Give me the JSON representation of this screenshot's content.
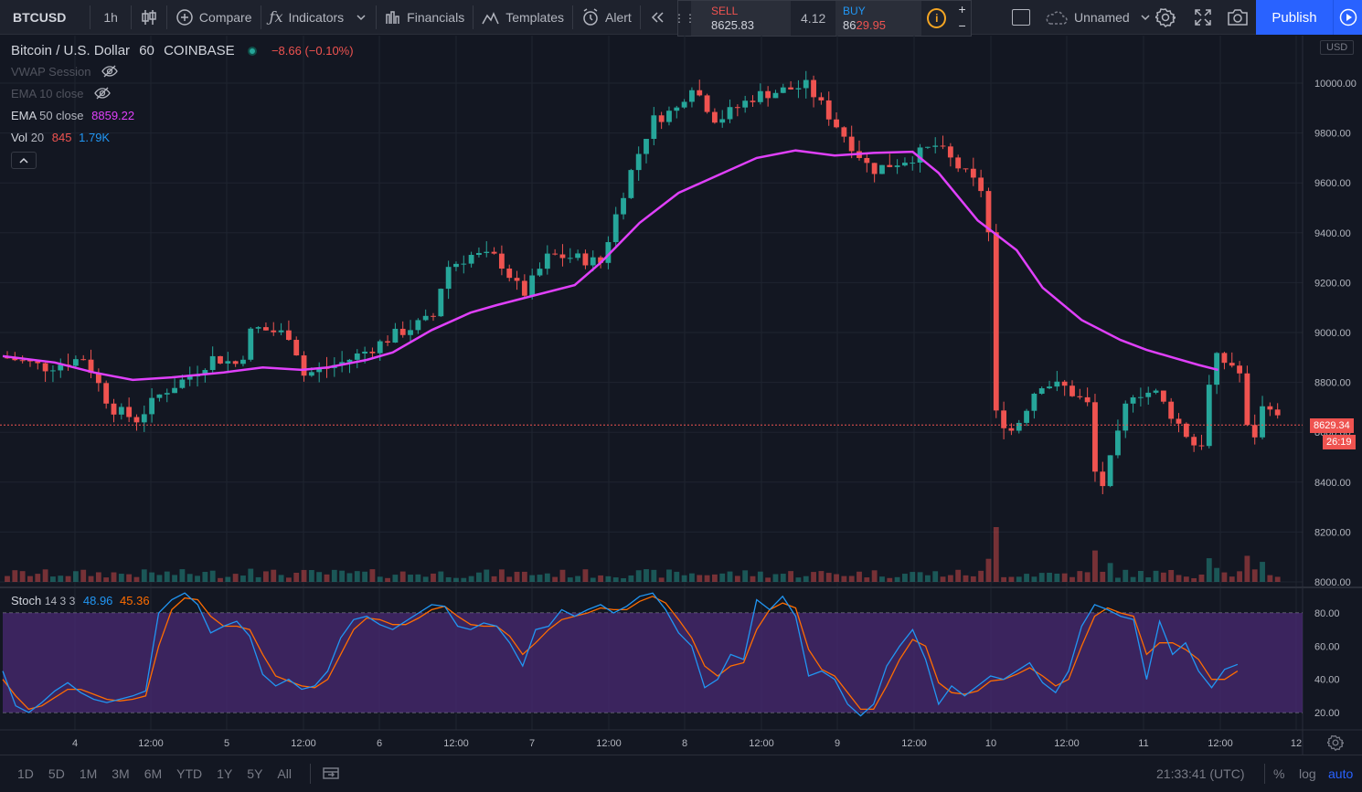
{
  "toolbar": {
    "symbol": "BTCUSD",
    "interval": "1h",
    "compare": "Compare",
    "indicators": "Indicators",
    "financials": "Financials",
    "templates": "Templates",
    "alert": "Alert",
    "layout_name": "Unnamed",
    "publish": "Publish"
  },
  "trade": {
    "sell_label": "SELL",
    "sell_price": "8625.83",
    "spread": "4.12",
    "buy_label": "BUY",
    "buy_price_prefix": "86",
    "buy_price_suffix": "29.95",
    "info": "i",
    "plus": "+",
    "minus": "−"
  },
  "legend": {
    "title": "Bitcoin / U.S. Dollar",
    "interval": "60",
    "exchange": "COINBASE",
    "change": "−8.66 (−0.10%)",
    "vwap": "VWAP Session",
    "ema10": "EMA 10 close",
    "ema50_name": "EMA",
    "ema50_params": "50 close",
    "ema50_value": "8859.22",
    "vol_name": "Vol",
    "vol_param": "20",
    "vol_value": "845",
    "vol_ma": "1.79K",
    "stoch_name": "Stoch",
    "stoch_params": "14 3 3",
    "stoch_k": "48.96",
    "stoch_d": "45.36"
  },
  "price_axis": {
    "currency": "USD",
    "labels": [
      "10000.00",
      "9800.00",
      "9600.00",
      "9400.00",
      "9200.00",
      "9000.00",
      "8800.00",
      "8600.00",
      "8400.00",
      "8200.00",
      "8000.00"
    ],
    "last_price": "8629.34",
    "countdown": "26:19"
  },
  "stoch_axis": {
    "labels": [
      "80.00",
      "60.00",
      "40.00",
      "20.00"
    ]
  },
  "time_axis": {
    "labels": [
      "4",
      "12:00",
      "5",
      "12:00",
      "6",
      "12:00",
      "7",
      "12:00",
      "8",
      "12:00",
      "9",
      "12:00",
      "10",
      "12:00",
      "11",
      "12:00",
      "12"
    ]
  },
  "bottom": {
    "ranges": [
      "1D",
      "5D",
      "1M",
      "3M",
      "6M",
      "YTD",
      "1Y",
      "5Y",
      "All"
    ],
    "clock": "21:33:41 (UTC)",
    "percent": "%",
    "log": "log",
    "auto": "auto"
  },
  "colors": {
    "up": "#26a69a",
    "down": "#ef5350",
    "ema50": "#e040fb",
    "stoch_k": "#2196f3",
    "stoch_d": "#ff6d00",
    "stoch_band": "#4a2a73"
  },
  "chart_data": {
    "type": "candlestick",
    "ema50": [
      [
        0,
        8905
      ],
      [
        0.04,
        8880
      ],
      [
        0.07,
        8840
      ],
      [
        0.1,
        8810
      ],
      [
        0.13,
        8820
      ],
      [
        0.17,
        8840
      ],
      [
        0.2,
        8860
      ],
      [
        0.23,
        8850
      ],
      [
        0.25,
        8860
      ],
      [
        0.28,
        8890
      ],
      [
        0.3,
        8920
      ],
      [
        0.33,
        9010
      ],
      [
        0.36,
        9080
      ],
      [
        0.38,
        9110
      ],
      [
        0.41,
        9150
      ],
      [
        0.44,
        9190
      ],
      [
        0.46,
        9280
      ],
      [
        0.49,
        9440
      ],
      [
        0.52,
        9560
      ],
      [
        0.55,
        9630
      ],
      [
        0.58,
        9700
      ],
      [
        0.61,
        9730
      ],
      [
        0.64,
        9710
      ],
      [
        0.67,
        9720
      ],
      [
        0.7,
        9725
      ],
      [
        0.72,
        9640
      ],
      [
        0.75,
        9450
      ],
      [
        0.78,
        9330
      ],
      [
        0.8,
        9180
      ],
      [
        0.83,
        9050
      ],
      [
        0.86,
        8970
      ],
      [
        0.88,
        8930
      ],
      [
        0.9,
        8900
      ],
      [
        0.92,
        8870
      ],
      [
        0.935,
        8850
      ]
    ],
    "stoch_k": [
      [
        0,
        45
      ],
      [
        0.01,
        24
      ],
      [
        0.02,
        20
      ],
      [
        0.03,
        26
      ],
      [
        0.04,
        33
      ],
      [
        0.05,
        38
      ],
      [
        0.06,
        32
      ],
      [
        0.07,
        28
      ],
      [
        0.08,
        26
      ],
      [
        0.09,
        28
      ],
      [
        0.1,
        30
      ],
      [
        0.11,
        33
      ],
      [
        0.12,
        80
      ],
      [
        0.13,
        88
      ],
      [
        0.14,
        92
      ],
      [
        0.15,
        85
      ],
      [
        0.16,
        68
      ],
      [
        0.17,
        72
      ],
      [
        0.18,
        75
      ],
      [
        0.19,
        66
      ],
      [
        0.2,
        43
      ],
      [
        0.21,
        36
      ],
      [
        0.22,
        40
      ],
      [
        0.23,
        34
      ],
      [
        0.24,
        36
      ],
      [
        0.25,
        45
      ],
      [
        0.26,
        65
      ],
      [
        0.27,
        76
      ],
      [
        0.28,
        78
      ],
      [
        0.29,
        73
      ],
      [
        0.3,
        70
      ],
      [
        0.31,
        75
      ],
      [
        0.32,
        80
      ],
      [
        0.33,
        85
      ],
      [
        0.34,
        84
      ],
      [
        0.35,
        72
      ],
      [
        0.36,
        70
      ],
      [
        0.37,
        74
      ],
      [
        0.38,
        72
      ],
      [
        0.39,
        62
      ],
      [
        0.4,
        48
      ],
      [
        0.41,
        70
      ],
      [
        0.42,
        72
      ],
      [
        0.43,
        82
      ],
      [
        0.44,
        78
      ],
      [
        0.45,
        82
      ],
      [
        0.46,
        85
      ],
      [
        0.47,
        80
      ],
      [
        0.48,
        84
      ],
      [
        0.49,
        90
      ],
      [
        0.5,
        92
      ],
      [
        0.51,
        82
      ],
      [
        0.52,
        68
      ],
      [
        0.53,
        60
      ],
      [
        0.54,
        35
      ],
      [
        0.55,
        40
      ],
      [
        0.56,
        55
      ],
      [
        0.57,
        52
      ],
      [
        0.58,
        88
      ],
      [
        0.59,
        82
      ],
      [
        0.6,
        90
      ],
      [
        0.61,
        78
      ],
      [
        0.62,
        42
      ],
      [
        0.63,
        45
      ],
      [
        0.64,
        40
      ],
      [
        0.65,
        25
      ],
      [
        0.66,
        18
      ],
      [
        0.67,
        25
      ],
      [
        0.68,
        48
      ],
      [
        0.69,
        60
      ],
      [
        0.7,
        70
      ],
      [
        0.71,
        52
      ],
      [
        0.72,
        25
      ],
      [
        0.73,
        36
      ],
      [
        0.74,
        30
      ],
      [
        0.75,
        36
      ],
      [
        0.76,
        42
      ],
      [
        0.77,
        40
      ],
      [
        0.78,
        45
      ],
      [
        0.79,
        50
      ],
      [
        0.8,
        38
      ],
      [
        0.81,
        32
      ],
      [
        0.82,
        45
      ],
      [
        0.83,
        72
      ],
      [
        0.84,
        85
      ],
      [
        0.85,
        82
      ],
      [
        0.86,
        78
      ],
      [
        0.87,
        76
      ],
      [
        0.88,
        40
      ],
      [
        0.89,
        75
      ],
      [
        0.9,
        55
      ],
      [
        0.91,
        62
      ],
      [
        0.92,
        45
      ],
      [
        0.93,
        35
      ],
      [
        0.94,
        46
      ],
      [
        0.95,
        49
      ]
    ],
    "stoch_d": [
      [
        0,
        40
      ],
      [
        0.01,
        30
      ],
      [
        0.02,
        22
      ],
      [
        0.03,
        24
      ],
      [
        0.04,
        29
      ],
      [
        0.05,
        34
      ],
      [
        0.06,
        34
      ],
      [
        0.07,
        31
      ],
      [
        0.08,
        28
      ],
      [
        0.09,
        27
      ],
      [
        0.1,
        28
      ],
      [
        0.11,
        30
      ],
      [
        0.12,
        60
      ],
      [
        0.13,
        82
      ],
      [
        0.14,
        89
      ],
      [
        0.15,
        88
      ],
      [
        0.16,
        78
      ],
      [
        0.17,
        72
      ],
      [
        0.18,
        72
      ],
      [
        0.19,
        70
      ],
      [
        0.2,
        55
      ],
      [
        0.21,
        42
      ],
      [
        0.22,
        39
      ],
      [
        0.23,
        36
      ],
      [
        0.24,
        35
      ],
      [
        0.25,
        40
      ],
      [
        0.26,
        55
      ],
      [
        0.27,
        70
      ],
      [
        0.28,
        77
      ],
      [
        0.29,
        76
      ],
      [
        0.3,
        73
      ],
      [
        0.31,
        73
      ],
      [
        0.32,
        77
      ],
      [
        0.33,
        82
      ],
      [
        0.34,
        84
      ],
      [
        0.35,
        78
      ],
      [
        0.36,
        73
      ],
      [
        0.37,
        72
      ],
      [
        0.38,
        72
      ],
      [
        0.39,
        66
      ],
      [
        0.4,
        55
      ],
      [
        0.41,
        62
      ],
      [
        0.42,
        70
      ],
      [
        0.43,
        76
      ],
      [
        0.44,
        78
      ],
      [
        0.45,
        80
      ],
      [
        0.46,
        83
      ],
      [
        0.47,
        82
      ],
      [
        0.48,
        82
      ],
      [
        0.49,
        87
      ],
      [
        0.5,
        90
      ],
      [
        0.51,
        86
      ],
      [
        0.52,
        76
      ],
      [
        0.53,
        65
      ],
      [
        0.54,
        48
      ],
      [
        0.55,
        42
      ],
      [
        0.56,
        48
      ],
      [
        0.57,
        50
      ],
      [
        0.58,
        70
      ],
      [
        0.59,
        82
      ],
      [
        0.6,
        86
      ],
      [
        0.61,
        83
      ],
      [
        0.62,
        58
      ],
      [
        0.63,
        46
      ],
      [
        0.64,
        42
      ],
      [
        0.65,
        32
      ],
      [
        0.66,
        22
      ],
      [
        0.67,
        22
      ],
      [
        0.68,
        36
      ],
      [
        0.69,
        52
      ],
      [
        0.7,
        64
      ],
      [
        0.71,
        60
      ],
      [
        0.72,
        38
      ],
      [
        0.73,
        32
      ],
      [
        0.74,
        31
      ],
      [
        0.75,
        33
      ],
      [
        0.76,
        39
      ],
      [
        0.77,
        40
      ],
      [
        0.78,
        43
      ],
      [
        0.79,
        47
      ],
      [
        0.8,
        42
      ],
      [
        0.81,
        36
      ],
      [
        0.82,
        40
      ],
      [
        0.83,
        60
      ],
      [
        0.84,
        78
      ],
      [
        0.85,
        83
      ],
      [
        0.86,
        80
      ],
      [
        0.87,
        78
      ],
      [
        0.88,
        55
      ],
      [
        0.89,
        62
      ],
      [
        0.9,
        62
      ],
      [
        0.91,
        58
      ],
      [
        0.92,
        52
      ],
      [
        0.93,
        40
      ],
      [
        0.94,
        40
      ],
      [
        0.95,
        45
      ]
    ]
  }
}
